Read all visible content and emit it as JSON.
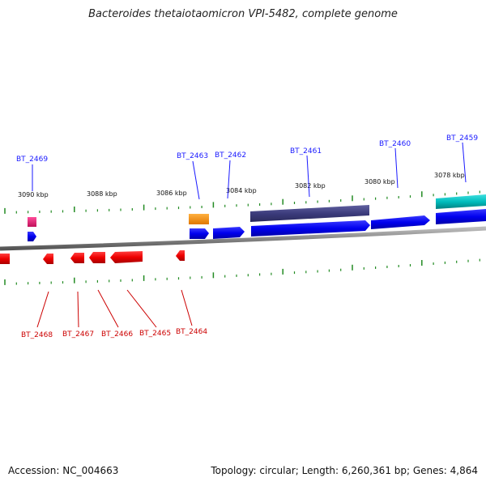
{
  "title": "Bacteroides thetaiotaomicron VPI-5482, complete genome",
  "footer": {
    "accession": "Accession: NC_004663",
    "summary": "Topology: circular; Length: 6,260,361 bp; Genes: 4,864"
  },
  "colors": {
    "forward_label": "#1a1aff",
    "reverse_label": "#cc0000",
    "forward_gene": "#0000ee",
    "reverse_gene": "#ee0000",
    "tick": "#228b22",
    "backbone": "#777777"
  },
  "scale_labels": [
    "3090 kbp",
    "3088 kbp",
    "3086 kbp",
    "3084 kbp",
    "3082 kbp",
    "3080 kbp",
    "3078 kbp"
  ],
  "forward_labels": [
    "BT_2469",
    "BT_2463",
    "BT_2462",
    "BT_2461",
    "BT_2460",
    "BT_2459"
  ],
  "reverse_labels": [
    "BT_2468",
    "BT_2467",
    "BT_2466",
    "BT_2465",
    "BT_2464"
  ],
  "feature_tracks": {
    "forward_gene_color": "blue",
    "reverse_gene_color": "red",
    "extra_features": [
      "pink",
      "orange",
      "dark-slate-blue",
      "cyan"
    ]
  }
}
